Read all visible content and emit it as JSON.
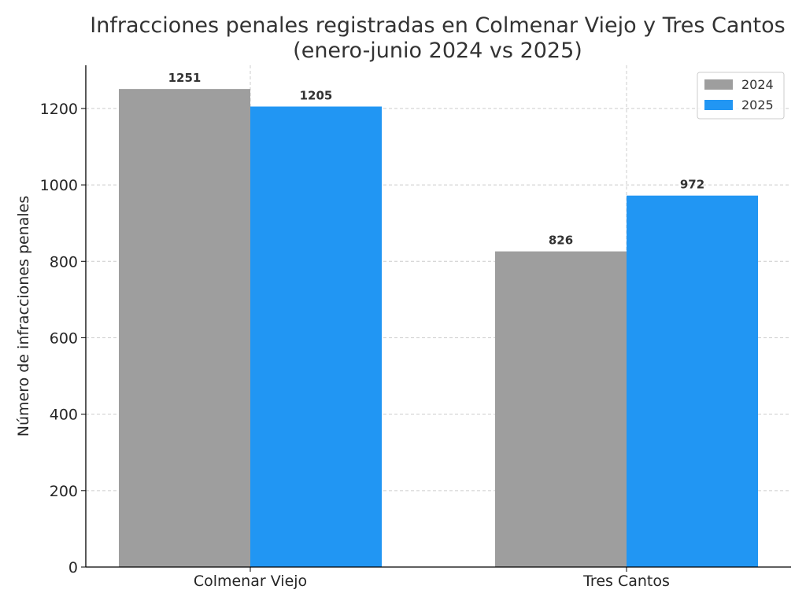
{
  "chart_data": {
    "type": "bar",
    "title": [
      "Infracciones penales registradas en Colmenar Viejo y Tres Cantos",
      "(enero-junio 2024 vs 2025)"
    ],
    "xlabel": "",
    "ylabel": "Número de infracciones penales",
    "categories": [
      "Colmenar Viejo",
      "Tres Cantos"
    ],
    "series": [
      {
        "name": "2024",
        "color": "#9e9e9e",
        "values": [
          1251,
          826
        ]
      },
      {
        "name": "2025",
        "color": "#2196f3",
        "values": [
          1205,
          972
        ]
      }
    ],
    "ylim": [
      0,
      1313
    ],
    "yticks": [
      0,
      200,
      400,
      600,
      800,
      1000,
      1200
    ],
    "grid": true,
    "legend_position": "top-right"
  }
}
